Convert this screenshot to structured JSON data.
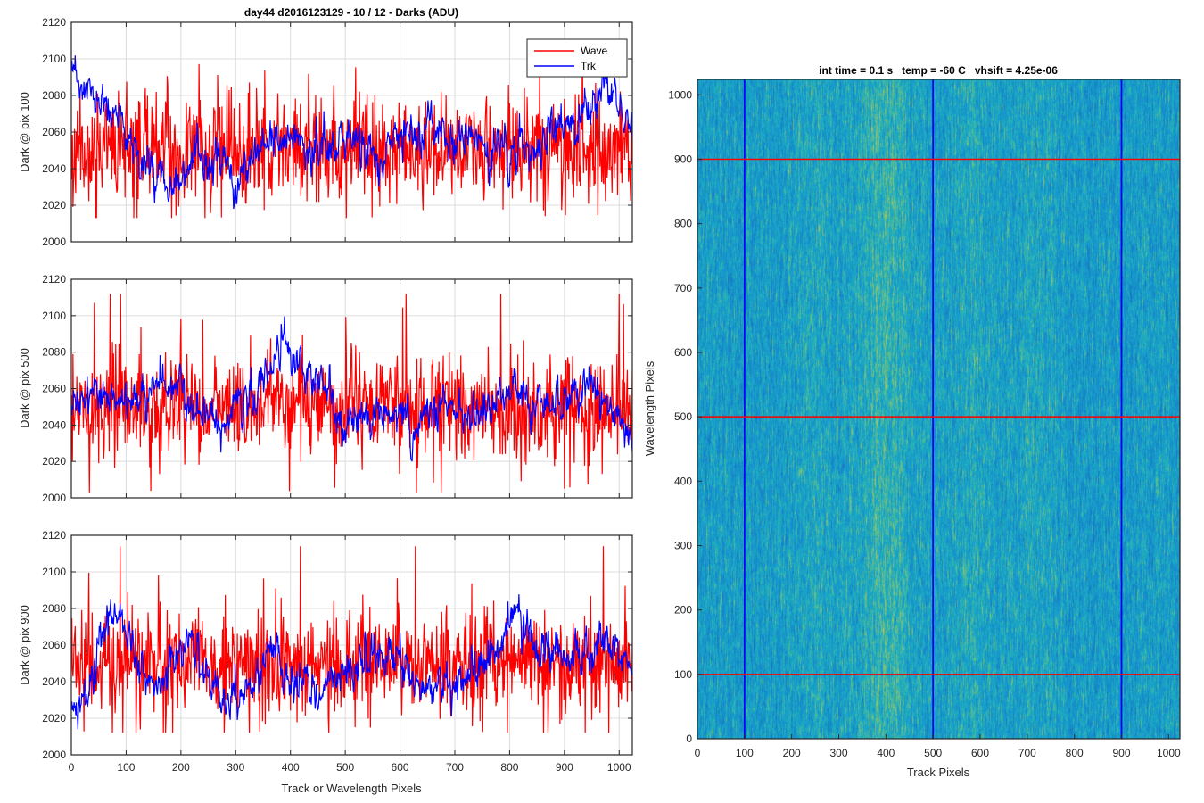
{
  "chart_data": [
    {
      "type": "line",
      "title": "day44 d2016123129 - 10 / 12 - Darks (ADU)",
      "ylabel": "Dark @ pix 100",
      "xlabel": "",
      "xlim": [
        0,
        1024
      ],
      "ylim": [
        2000,
        2120
      ],
      "xticks": [
        0,
        100,
        200,
        300,
        400,
        500,
        600,
        700,
        800,
        900,
        1000
      ],
      "yticks": [
        2000,
        2020,
        2040,
        2060,
        2080,
        2100,
        2120
      ],
      "grid": true,
      "legend": {
        "position": "top-right",
        "entries": [
          "Wave",
          "Trk"
        ]
      },
      "series": [
        {
          "name": "Wave",
          "color": "#ff0000",
          "mean": 2050,
          "noise": 14,
          "min": 2013,
          "max": 2107,
          "seed": 11
        },
        {
          "name": "Trk",
          "color": "#0000ff",
          "mean": 2050,
          "noise": 6,
          "trend": [
            [
              0,
              2090
            ],
            [
              40,
              2078
            ],
            [
              80,
              2068
            ],
            [
              130,
              2045
            ],
            [
              170,
              2035
            ],
            [
              210,
              2038
            ],
            [
              260,
              2045
            ],
            [
              300,
              2032
            ],
            [
              350,
              2048
            ],
            [
              400,
              2058
            ],
            [
              450,
              2050
            ],
            [
              520,
              2055
            ],
            [
              560,
              2045
            ],
            [
              620,
              2060
            ],
            [
              660,
              2058
            ],
            [
              720,
              2055
            ],
            [
              780,
              2050
            ],
            [
              830,
              2048
            ],
            [
              880,
              2060
            ],
            [
              930,
              2068
            ],
            [
              970,
              2080
            ],
            [
              1000,
              2078
            ],
            [
              1024,
              2060
            ]
          ],
          "seed": 23
        }
      ]
    },
    {
      "type": "line",
      "title": "",
      "ylabel": "Dark @ pix 500",
      "xlabel": "",
      "xlim": [
        0,
        1024
      ],
      "ylim": [
        2000,
        2120
      ],
      "xticks": [
        0,
        100,
        200,
        300,
        400,
        500,
        600,
        700,
        800,
        900,
        1000
      ],
      "yticks": [
        2000,
        2020,
        2040,
        2060,
        2080,
        2100,
        2120
      ],
      "grid": true,
      "series": [
        {
          "name": "Wave",
          "color": "#ff0000",
          "mean": 2050,
          "noise": 14,
          "min": 2003,
          "max": 2112,
          "seed": 31
        },
        {
          "name": "Trk",
          "color": "#0000ff",
          "mean": 2050,
          "noise": 6,
          "trend": [
            [
              0,
              2045
            ],
            [
              40,
              2058
            ],
            [
              100,
              2052
            ],
            [
              160,
              2062
            ],
            [
              200,
              2055
            ],
            [
              260,
              2040
            ],
            [
              300,
              2045
            ],
            [
              350,
              2065
            ],
            [
              390,
              2085
            ],
            [
              420,
              2075
            ],
            [
              460,
              2058
            ],
            [
              500,
              2035
            ],
            [
              540,
              2045
            ],
            [
              580,
              2050
            ],
            [
              630,
              2040
            ],
            [
              680,
              2045
            ],
            [
              730,
              2040
            ],
            [
              800,
              2060
            ],
            [
              850,
              2050
            ],
            [
              900,
              2055
            ],
            [
              960,
              2058
            ],
            [
              1000,
              2045
            ],
            [
              1024,
              2030
            ]
          ],
          "seed": 43
        }
      ]
    },
    {
      "type": "line",
      "title": "",
      "ylabel": "Dark @ pix 900",
      "xlabel": "Track or Wavelength Pixels",
      "xlim": [
        0,
        1024
      ],
      "ylim": [
        2000,
        2120
      ],
      "xticks": [
        0,
        100,
        200,
        300,
        400,
        500,
        600,
        700,
        800,
        900,
        1000
      ],
      "yticks": [
        2000,
        2020,
        2040,
        2060,
        2080,
        2100,
        2120
      ],
      "grid": true,
      "series": [
        {
          "name": "Wave",
          "color": "#ff0000",
          "mean": 2050,
          "noise": 14,
          "min": 2012,
          "max": 2114,
          "seed": 51
        },
        {
          "name": "Trk",
          "color": "#0000ff",
          "mean": 2050,
          "noise": 6,
          "trend": [
            [
              0,
              2030
            ],
            [
              30,
              2028
            ],
            [
              70,
              2080
            ],
            [
              100,
              2070
            ],
            [
              150,
              2035
            ],
            [
              200,
              2055
            ],
            [
              230,
              2060
            ],
            [
              260,
              2040
            ],
            [
              300,
              2028
            ],
            [
              340,
              2040
            ],
            [
              370,
              2060
            ],
            [
              400,
              2040
            ],
            [
              460,
              2035
            ],
            [
              500,
              2045
            ],
            [
              560,
              2055
            ],
            [
              620,
              2048
            ],
            [
              660,
              2035
            ],
            [
              720,
              2040
            ],
            [
              780,
              2060
            ],
            [
              810,
              2080
            ],
            [
              850,
              2060
            ],
            [
              900,
              2050
            ],
            [
              950,
              2055
            ],
            [
              990,
              2060
            ],
            [
              1024,
              2040
            ]
          ],
          "seed": 67
        }
      ]
    },
    {
      "type": "heatmap",
      "title": "int time = 0.1 s   temp = -60 C   vhsift = 4.25e-06",
      "xlabel": "Track Pixels",
      "ylabel": "Wavelength Pixels",
      "xlim": [
        0,
        1024
      ],
      "ylim": [
        0,
        1024
      ],
      "xticks": [
        0,
        100,
        200,
        300,
        400,
        500,
        600,
        700,
        800,
        900,
        1000
      ],
      "yticks": [
        0,
        100,
        200,
        300,
        400,
        500,
        600,
        700,
        800,
        900,
        1000
      ],
      "colormap": "parula",
      "vertical_lines": {
        "color": "#0000ff",
        "x": [
          100,
          500,
          900
        ]
      },
      "horizontal_lines": {
        "color": "#ff0000",
        "y": [
          100,
          500,
          900
        ]
      },
      "bright_band_centers": [
        400,
        250,
        580,
        720
      ]
    }
  ]
}
